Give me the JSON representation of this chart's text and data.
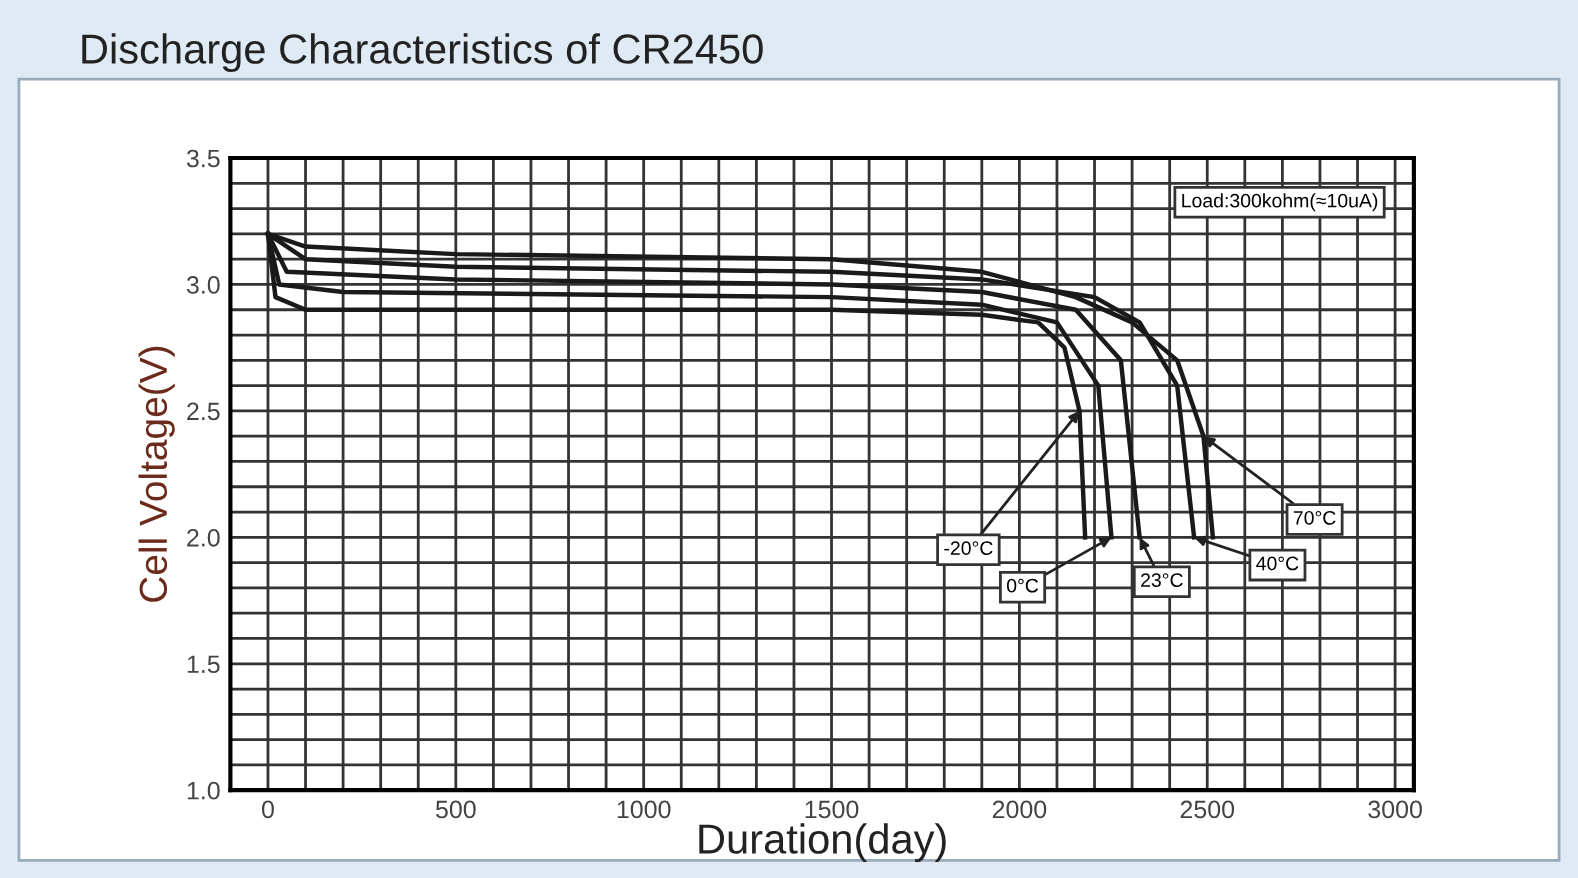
{
  "chart_data": {
    "type": "line",
    "title": "Discharge Characteristics of CR2450",
    "xlabel": "Duration(day)",
    "ylabel": "Cell Voltage(V)",
    "xlim": [
      -100,
      3050
    ],
    "ylim": [
      1.0,
      3.5
    ],
    "xticks": [
      0,
      500,
      1000,
      1500,
      2000,
      2500,
      3000
    ],
    "yticks": [
      {
        "value": 1.0,
        "label": "1.0"
      },
      {
        "value": 1.5,
        "label": "1.5"
      },
      {
        "value": 2.0,
        "label": "2.0"
      },
      {
        "value": 2.5,
        "label": "2.5"
      },
      {
        "value": 3.0,
        "label": "3.0"
      },
      {
        "value": 3.5,
        "label": "3.5"
      }
    ],
    "grid": true,
    "legend": false,
    "series": [
      {
        "color": "#1a1a1a",
        "x": [
          0,
          20,
          100,
          500,
          1500,
          1900,
          2050,
          2120,
          2160,
          2175
        ],
        "values": [
          3.2,
          2.95,
          2.9,
          2.9,
          2.9,
          2.88,
          2.85,
          2.75,
          2.5,
          2.0
        ]
      },
      {
        "color": "#1a1a1a",
        "x": [
          0,
          30,
          200,
          1500,
          1900,
          2100,
          2210,
          2245
        ],
        "values": [
          3.2,
          3.0,
          2.97,
          2.95,
          2.92,
          2.85,
          2.6,
          2.0
        ]
      },
      {
        "color": "#1a1a1a",
        "x": [
          0,
          50,
          500,
          1500,
          1900,
          2150,
          2270,
          2320
        ],
        "values": [
          3.2,
          3.05,
          3.02,
          3.0,
          2.97,
          2.9,
          2.7,
          2.0
        ]
      },
      {
        "color": "#1a1a1a",
        "x": [
          0,
          100,
          500,
          1500,
          1900,
          2200,
          2320,
          2420,
          2465
        ],
        "values": [
          3.2,
          3.1,
          3.07,
          3.05,
          3.02,
          2.95,
          2.85,
          2.6,
          2.0
        ]
      },
      {
        "color": "#1a1a1a",
        "x": [
          0,
          100,
          500,
          1500,
          1900,
          2150,
          2300,
          2420,
          2490,
          2515
        ],
        "values": [
          3.2,
          3.15,
          3.12,
          3.1,
          3.05,
          2.95,
          2.85,
          2.7,
          2.4,
          2.0
        ]
      }
    ],
    "annotations": [
      "Load:300kohm(≈10uA)",
      {
        "text": "-20°C",
        "x": 2160,
        "y": 2.5
      },
      {
        "text": "0°C",
        "x": 2245,
        "y": 2.0
      },
      {
        "text": "23°C",
        "x": 2320,
        "y": 2.0
      },
      {
        "text": "40°C",
        "x": 2465,
        "y": 2.0
      },
      {
        "text": "70°C",
        "x": 2490,
        "y": 2.4
      }
    ]
  }
}
